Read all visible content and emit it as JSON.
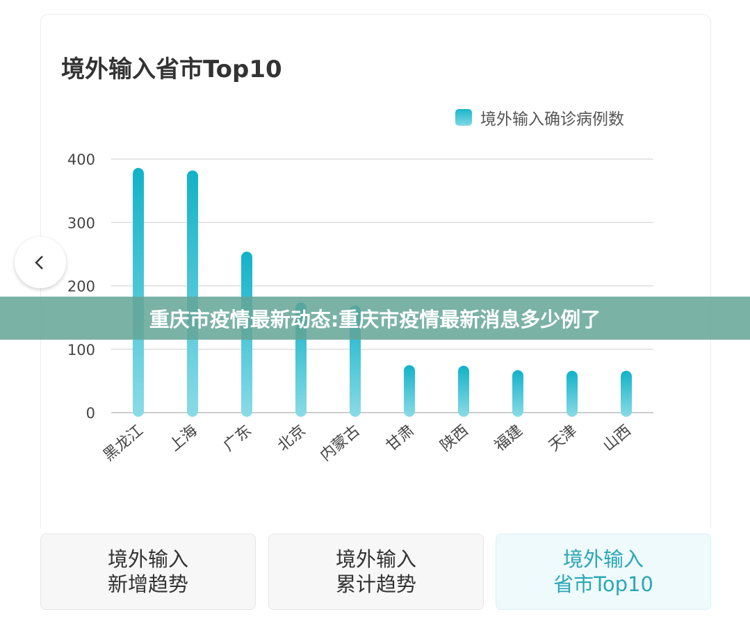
{
  "chart_data": {
    "type": "bar",
    "title": "境外输入省市Top10",
    "legend": [
      "境外输入确诊病例数"
    ],
    "legend_position": "top-right",
    "categories": [
      "黑龙江",
      "上海",
      "广东",
      "北京",
      "内蒙古",
      "甘肃",
      "陕西",
      "福建",
      "天津",
      "山西"
    ],
    "series": [
      {
        "name": "境外输入确诊病例数",
        "values": [
          386,
          382,
          254,
          174,
          169,
          75,
          74,
          67,
          66,
          66
        ]
      }
    ],
    "yticks": [
      "0",
      "100",
      "200",
      "300",
      "400"
    ],
    "ylim": [
      0,
      400
    ],
    "grid": true,
    "xlabel": "",
    "ylabel": ""
  },
  "colors": {
    "bar_top": "#12b2c8",
    "bar_bottom": "#8adbe6",
    "active_text": "#2aa7b5"
  },
  "banner": "重庆市疫情最新动态:重庆市疫情最新消息多少例了",
  "tabs": [
    {
      "line1": "境外输入",
      "line2": "新增趋势"
    },
    {
      "line1": "境外输入",
      "line2": "累计趋势"
    },
    {
      "line1": "境外输入",
      "line2": "省市Top10"
    }
  ]
}
